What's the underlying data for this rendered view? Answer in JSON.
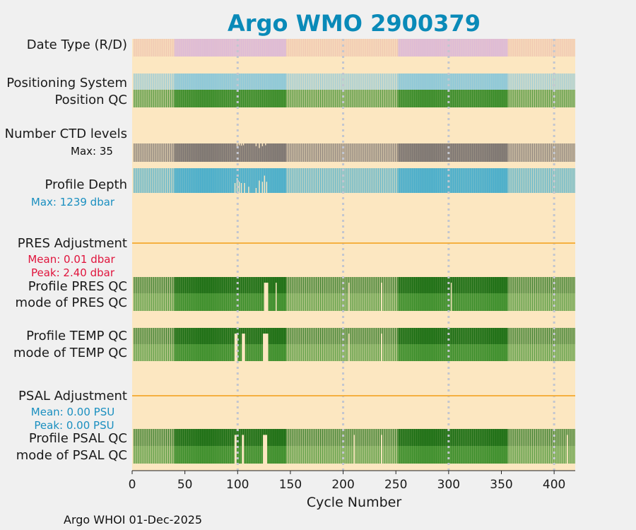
{
  "chart_data": {
    "type": "bar",
    "title": "Argo WMO 2900379",
    "xlabel": "Cycle Number",
    "xlim": [
      0,
      420
    ],
    "xticks": [
      0,
      50,
      100,
      150,
      200,
      250,
      300,
      350,
      400
    ],
    "xtick_labels": [
      "0",
      "50",
      "100",
      "150",
      "200",
      "250",
      "300",
      "350",
      "400"
    ],
    "grid_x": [
      100,
      200,
      300,
      400
    ],
    "cycle_start": 1,
    "dense_ranges": [
      [
        40,
        145
      ],
      [
        252,
        355
      ]
    ],
    "rows": {
      "date_type": {
        "label": "Date Type (R/D)"
      },
      "positioning_system": {
        "label": "Positioning System"
      },
      "position_qc": {
        "label": "Position QC"
      },
      "ctd_levels": {
        "label": "Number CTD levels",
        "max_label": "Max: 35",
        "max_value": 35
      },
      "profile_depth": {
        "label": "Profile Depth",
        "max_label": "Max: 1239 dbar",
        "max_value": 1239
      },
      "pres_adjustment": {
        "label": "PRES Adjustment",
        "mean_label": "Mean: 0.01 dbar",
        "peak_label": "Peak: 2.40 dbar"
      },
      "profile_pres_qc": {
        "label": "Profile PRES QC"
      },
      "mode_pres_qc": {
        "label": "mode of PRES QC"
      },
      "profile_temp_qc": {
        "label": "Profile TEMP QC"
      },
      "mode_temp_qc": {
        "label": "mode of TEMP QC"
      },
      "psal_adjustment": {
        "label": "PSAL Adjustment",
        "mean_label": "Mean: 0.00 PSU",
        "peak_label": "Peak: 0.00 PSU"
      },
      "profile_psal_qc": {
        "label": "Profile PSAL QC"
      },
      "mode_psal_qc": {
        "label": "mode of PSAL QC"
      }
    },
    "ctd_dips": [
      [
        99,
        0.85
      ],
      [
        101,
        0.9
      ],
      [
        103,
        0.88
      ],
      [
        105,
        0.9
      ],
      [
        117,
        0.85
      ],
      [
        120,
        0.75
      ],
      [
        123,
        0.85
      ],
      [
        126,
        0.9
      ]
    ],
    "depth_dips": [
      [
        97,
        0.6
      ],
      [
        99,
        0.4
      ],
      [
        101,
        0.55
      ],
      [
        103,
        0.6
      ],
      [
        106,
        0.6
      ],
      [
        110,
        0.75
      ],
      [
        117,
        0.8
      ],
      [
        120,
        0.5
      ],
      [
        123,
        0.55
      ],
      [
        125,
        0.3
      ],
      [
        127,
        0.55
      ]
    ],
    "pres_qc_gaps": [
      125,
      126,
      127,
      128,
      136,
      205,
      236,
      302
    ],
    "temp_qc_gaps": [
      97,
      98,
      99,
      104,
      105,
      106,
      124,
      125,
      126,
      127,
      128,
      205,
      236
    ],
    "psal_qc_gaps": [
      97,
      98,
      104,
      105,
      124,
      125,
      126,
      127,
      210,
      236,
      412
    ],
    "colors": {
      "background": "#fce7c1",
      "page": "#f0f0f0",
      "date_type": "#dcb8d6",
      "date_type_sparse": "#e8b4a8",
      "positioning": "#8ec8d8",
      "position_qc": "#3a8c2a",
      "ctd": "#7d7672",
      "depth": "#4aaecb",
      "adjustment_line": "#f5b040",
      "qc_top": "#1c6f14",
      "qc_bottom": "#3d8f2c",
      "grid": "#c2c6d0",
      "mean_peak_pres": "#e0143c",
      "mean_peak_psal": "#1a8fc0",
      "depth_max": "#1a8fc0"
    }
  },
  "footer": "Argo WHOI 01-Dec-2025"
}
